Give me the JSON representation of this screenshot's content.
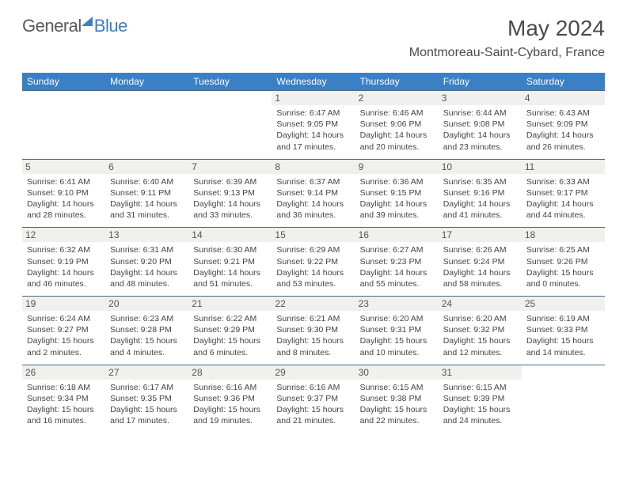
{
  "logo": {
    "general": "General",
    "blue": "Blue"
  },
  "title": "May 2024",
  "location": "Montmoreau-Saint-Cybard, France",
  "colors": {
    "header_bg": "#3b7fc4",
    "header_text": "#ffffff",
    "daynum_bg": "#f0f0ee",
    "text": "#444444",
    "rule": "#4a6a8a"
  },
  "day_names": [
    "Sunday",
    "Monday",
    "Tuesday",
    "Wednesday",
    "Thursday",
    "Friday",
    "Saturday"
  ],
  "weeks": [
    [
      {
        "n": "",
        "lines": []
      },
      {
        "n": "",
        "lines": []
      },
      {
        "n": "",
        "lines": []
      },
      {
        "n": "1",
        "lines": [
          "Sunrise: 6:47 AM",
          "Sunset: 9:05 PM",
          "Daylight: 14 hours",
          "and 17 minutes."
        ]
      },
      {
        "n": "2",
        "lines": [
          "Sunrise: 6:46 AM",
          "Sunset: 9:06 PM",
          "Daylight: 14 hours",
          "and 20 minutes."
        ]
      },
      {
        "n": "3",
        "lines": [
          "Sunrise: 6:44 AM",
          "Sunset: 9:08 PM",
          "Daylight: 14 hours",
          "and 23 minutes."
        ]
      },
      {
        "n": "4",
        "lines": [
          "Sunrise: 6:43 AM",
          "Sunset: 9:09 PM",
          "Daylight: 14 hours",
          "and 26 minutes."
        ]
      }
    ],
    [
      {
        "n": "5",
        "lines": [
          "Sunrise: 6:41 AM",
          "Sunset: 9:10 PM",
          "Daylight: 14 hours",
          "and 28 minutes."
        ]
      },
      {
        "n": "6",
        "lines": [
          "Sunrise: 6:40 AM",
          "Sunset: 9:11 PM",
          "Daylight: 14 hours",
          "and 31 minutes."
        ]
      },
      {
        "n": "7",
        "lines": [
          "Sunrise: 6:39 AM",
          "Sunset: 9:13 PM",
          "Daylight: 14 hours",
          "and 33 minutes."
        ]
      },
      {
        "n": "8",
        "lines": [
          "Sunrise: 6:37 AM",
          "Sunset: 9:14 PM",
          "Daylight: 14 hours",
          "and 36 minutes."
        ]
      },
      {
        "n": "9",
        "lines": [
          "Sunrise: 6:36 AM",
          "Sunset: 9:15 PM",
          "Daylight: 14 hours",
          "and 39 minutes."
        ]
      },
      {
        "n": "10",
        "lines": [
          "Sunrise: 6:35 AM",
          "Sunset: 9:16 PM",
          "Daylight: 14 hours",
          "and 41 minutes."
        ]
      },
      {
        "n": "11",
        "lines": [
          "Sunrise: 6:33 AM",
          "Sunset: 9:17 PM",
          "Daylight: 14 hours",
          "and 44 minutes."
        ]
      }
    ],
    [
      {
        "n": "12",
        "lines": [
          "Sunrise: 6:32 AM",
          "Sunset: 9:19 PM",
          "Daylight: 14 hours",
          "and 46 minutes."
        ]
      },
      {
        "n": "13",
        "lines": [
          "Sunrise: 6:31 AM",
          "Sunset: 9:20 PM",
          "Daylight: 14 hours",
          "and 48 minutes."
        ]
      },
      {
        "n": "14",
        "lines": [
          "Sunrise: 6:30 AM",
          "Sunset: 9:21 PM",
          "Daylight: 14 hours",
          "and 51 minutes."
        ]
      },
      {
        "n": "15",
        "lines": [
          "Sunrise: 6:29 AM",
          "Sunset: 9:22 PM",
          "Daylight: 14 hours",
          "and 53 minutes."
        ]
      },
      {
        "n": "16",
        "lines": [
          "Sunrise: 6:27 AM",
          "Sunset: 9:23 PM",
          "Daylight: 14 hours",
          "and 55 minutes."
        ]
      },
      {
        "n": "17",
        "lines": [
          "Sunrise: 6:26 AM",
          "Sunset: 9:24 PM",
          "Daylight: 14 hours",
          "and 58 minutes."
        ]
      },
      {
        "n": "18",
        "lines": [
          "Sunrise: 6:25 AM",
          "Sunset: 9:26 PM",
          "Daylight: 15 hours",
          "and 0 minutes."
        ]
      }
    ],
    [
      {
        "n": "19",
        "lines": [
          "Sunrise: 6:24 AM",
          "Sunset: 9:27 PM",
          "Daylight: 15 hours",
          "and 2 minutes."
        ]
      },
      {
        "n": "20",
        "lines": [
          "Sunrise: 6:23 AM",
          "Sunset: 9:28 PM",
          "Daylight: 15 hours",
          "and 4 minutes."
        ]
      },
      {
        "n": "21",
        "lines": [
          "Sunrise: 6:22 AM",
          "Sunset: 9:29 PM",
          "Daylight: 15 hours",
          "and 6 minutes."
        ]
      },
      {
        "n": "22",
        "lines": [
          "Sunrise: 6:21 AM",
          "Sunset: 9:30 PM",
          "Daylight: 15 hours",
          "and 8 minutes."
        ]
      },
      {
        "n": "23",
        "lines": [
          "Sunrise: 6:20 AM",
          "Sunset: 9:31 PM",
          "Daylight: 15 hours",
          "and 10 minutes."
        ]
      },
      {
        "n": "24",
        "lines": [
          "Sunrise: 6:20 AM",
          "Sunset: 9:32 PM",
          "Daylight: 15 hours",
          "and 12 minutes."
        ]
      },
      {
        "n": "25",
        "lines": [
          "Sunrise: 6:19 AM",
          "Sunset: 9:33 PM",
          "Daylight: 15 hours",
          "and 14 minutes."
        ]
      }
    ],
    [
      {
        "n": "26",
        "lines": [
          "Sunrise: 6:18 AM",
          "Sunset: 9:34 PM",
          "Daylight: 15 hours",
          "and 16 minutes."
        ]
      },
      {
        "n": "27",
        "lines": [
          "Sunrise: 6:17 AM",
          "Sunset: 9:35 PM",
          "Daylight: 15 hours",
          "and 17 minutes."
        ]
      },
      {
        "n": "28",
        "lines": [
          "Sunrise: 6:16 AM",
          "Sunset: 9:36 PM",
          "Daylight: 15 hours",
          "and 19 minutes."
        ]
      },
      {
        "n": "29",
        "lines": [
          "Sunrise: 6:16 AM",
          "Sunset: 9:37 PM",
          "Daylight: 15 hours",
          "and 21 minutes."
        ]
      },
      {
        "n": "30",
        "lines": [
          "Sunrise: 6:15 AM",
          "Sunset: 9:38 PM",
          "Daylight: 15 hours",
          "and 22 minutes."
        ]
      },
      {
        "n": "31",
        "lines": [
          "Sunrise: 6:15 AM",
          "Sunset: 9:39 PM",
          "Daylight: 15 hours",
          "and 24 minutes."
        ]
      },
      {
        "n": "",
        "lines": []
      }
    ]
  ]
}
